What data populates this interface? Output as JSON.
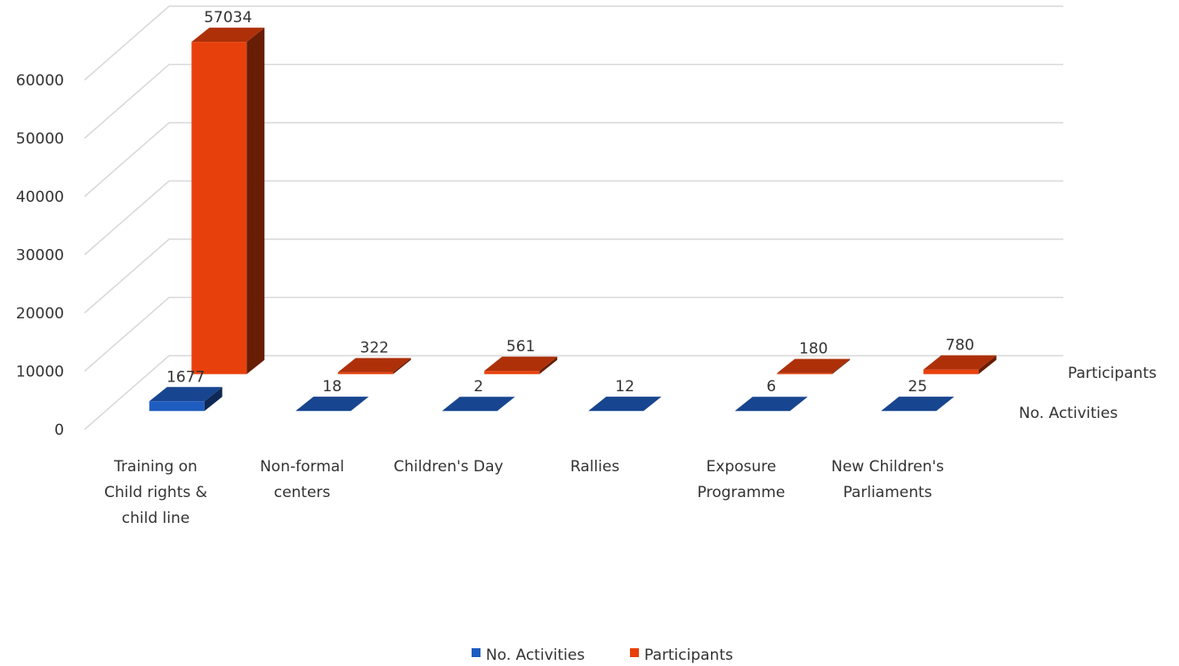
{
  "chart_data": {
    "type": "bar3d",
    "categories": [
      "Training on Child rights & child line",
      "Non-formal centers",
      "Children's Day",
      "Rallies",
      "Exposure Programme",
      "New Children's Parliaments"
    ],
    "series": [
      {
        "name": "No. Activities",
        "color": "#1f5cbf",
        "values": [
          1677,
          18,
          2,
          12,
          6,
          25
        ]
      },
      {
        "name": "Participants",
        "color": "#e8400c",
        "values": [
          57034,
          322,
          561,
          null,
          180,
          780
        ]
      }
    ],
    "ylim": [
      0,
      60000
    ],
    "yticks": [
      0,
      10000,
      20000,
      30000,
      40000,
      50000,
      60000
    ],
    "grid": true,
    "legend": "bottom"
  }
}
